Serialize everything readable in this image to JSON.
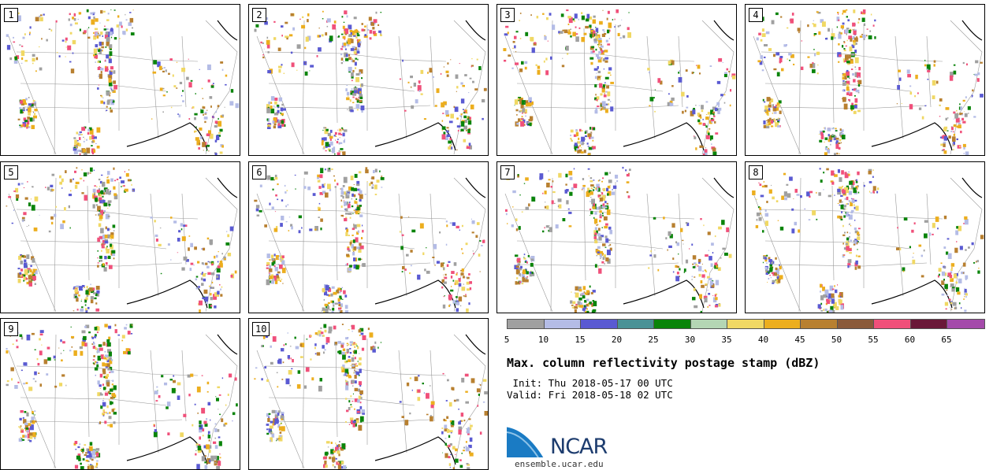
{
  "panels": [
    {
      "label": "1"
    },
    {
      "label": "2"
    },
    {
      "label": "3"
    },
    {
      "label": "4"
    },
    {
      "label": "5"
    },
    {
      "label": "6"
    },
    {
      "label": "7"
    },
    {
      "label": "8"
    },
    {
      "label": "9"
    },
    {
      "label": "10"
    }
  ],
  "colorbar": {
    "colors": [
      "#a0a0a0",
      "#b4bce6",
      "#5a5ad2",
      "#4a9296",
      "#0a840a",
      "#b4d6b4",
      "#f0d864",
      "#ecae1e",
      "#b88030",
      "#8a5a3a",
      "#f0507a",
      "#6a1838",
      "#a44aaa"
    ],
    "ticks": [
      "5",
      "10",
      "15",
      "20",
      "25",
      "30",
      "35",
      "40",
      "45",
      "50",
      "55",
      "60",
      "65"
    ]
  },
  "title": "Max. column reflectivity postage stamp (dBZ)",
  "init": " Init: Thu 2018-05-17 00 UTC",
  "valid": "Valid: Fri 2018-05-18 02 UTC",
  "logo_text": "NCAR",
  "url": "ensemble.ucar.edu"
}
